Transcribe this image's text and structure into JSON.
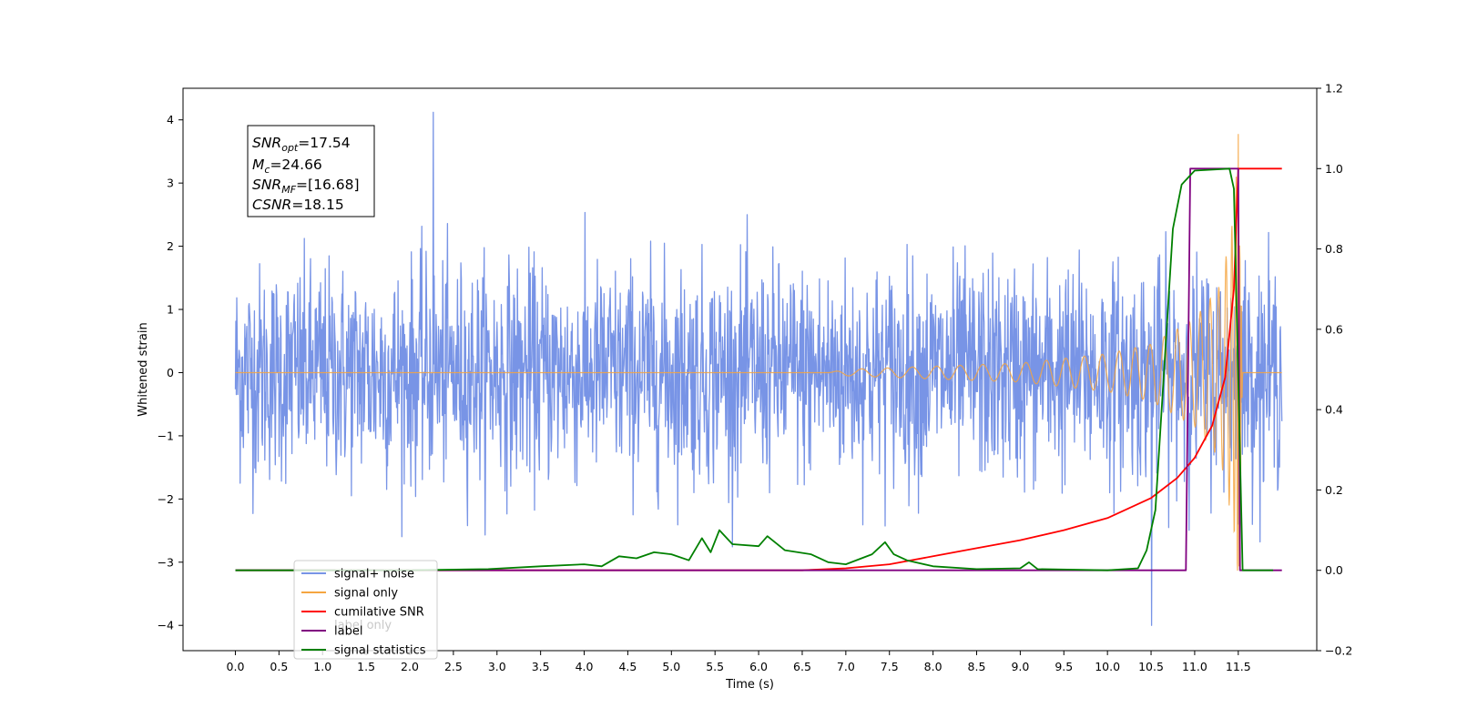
{
  "chart_data": {
    "type": "line",
    "title": "",
    "xlabel": "Time (s)",
    "ylabel": "Whitened strain",
    "xlim": [
      -0.6,
      12.4
    ],
    "ylim": [
      -4.4,
      4.5
    ],
    "y2lim": [
      -0.2,
      1.2
    ],
    "x_ticks": [
      "0.0",
      "0.5",
      "1.0",
      "1.5",
      "2.0",
      "2.5",
      "3.0",
      "3.5",
      "4.0",
      "4.5",
      "5.0",
      "5.5",
      "6.0",
      "6.5",
      "7.0",
      "7.5",
      "8.0",
      "8.5",
      "9.0",
      "9.5",
      "10.0",
      "10.5",
      "11.0",
      "11.5"
    ],
    "y_ticks": [
      "−4",
      "−3",
      "−2",
      "−1",
      "0",
      "1",
      "2",
      "3",
      "4"
    ],
    "y2_ticks": [
      "−0.2",
      "0.0",
      "0.2",
      "0.4",
      "0.6",
      "0.8",
      "1.0",
      "1.2"
    ],
    "annotation": {
      "snr_opt": "=17.54",
      "mc": "=24.66",
      "snr_mf": "=[16.68]",
      "csnr": "=18.15"
    },
    "legend_position": "lower-left",
    "series": [
      {
        "name": "signal+ noise",
        "axis": "left",
        "color": "#7894e6",
        "style": "noise",
        "x_range": [
          0.0,
          12.0
        ],
        "peak_abs_y": [
          4.12,
          -4.0
        ],
        "typical_range": [
          -2.3,
          2.4
        ]
      },
      {
        "name": "signal only",
        "axis": "left",
        "color": "#f5a540",
        "style": "chirp",
        "x_range": [
          0.0,
          12.0
        ],
        "merger_x": 11.5,
        "amplitude_points": [
          [
            6.8,
            0.0
          ],
          [
            7.0,
            0.05
          ],
          [
            8.0,
            0.1
          ],
          [
            9.0,
            0.15
          ],
          [
            10.0,
            0.3
          ],
          [
            10.5,
            0.45
          ],
          [
            11.0,
            0.85
          ],
          [
            11.3,
            1.4
          ],
          [
            11.45,
            2.5
          ],
          [
            11.5,
            3.8
          ],
          [
            11.55,
            0.0
          ]
        ]
      },
      {
        "name": "cumilative SNR",
        "axis": "right",
        "color": "#ff0000",
        "points": [
          [
            0,
            0
          ],
          [
            6.5,
            0
          ],
          [
            7.0,
            0.005
          ],
          [
            7.5,
            0.015
          ],
          [
            8.0,
            0.035
          ],
          [
            8.5,
            0.055
          ],
          [
            9.0,
            0.075
          ],
          [
            9.5,
            0.1
          ],
          [
            10.0,
            0.13
          ],
          [
            10.5,
            0.18
          ],
          [
            10.8,
            0.23
          ],
          [
            11.0,
            0.28
          ],
          [
            11.2,
            0.36
          ],
          [
            11.35,
            0.48
          ],
          [
            11.45,
            0.7
          ],
          [
            11.5,
            1.0
          ],
          [
            12.0,
            1.0
          ]
        ]
      },
      {
        "name": "label",
        "axis": "right",
        "color": "#800080",
        "points": [
          [
            0,
            0
          ],
          [
            10.9,
            0
          ],
          [
            10.95,
            1.0
          ],
          [
            11.5,
            1.0
          ],
          [
            11.52,
            0
          ],
          [
            12.0,
            0
          ]
        ]
      },
      {
        "name": "signal statistics",
        "axis": "right",
        "color": "#008000",
        "points": [
          [
            0,
            0
          ],
          [
            2.0,
            0
          ],
          [
            2.9,
            0.003
          ],
          [
            3.5,
            0.01
          ],
          [
            4.0,
            0.015
          ],
          [
            4.2,
            0.01
          ],
          [
            4.4,
            0.035
          ],
          [
            4.6,
            0.03
          ],
          [
            4.8,
            0.045
          ],
          [
            5.0,
            0.04
          ],
          [
            5.2,
            0.025
          ],
          [
            5.35,
            0.08
          ],
          [
            5.45,
            0.045
          ],
          [
            5.55,
            0.1
          ],
          [
            5.7,
            0.065
          ],
          [
            6.0,
            0.06
          ],
          [
            6.1,
            0.085
          ],
          [
            6.3,
            0.05
          ],
          [
            6.6,
            0.04
          ],
          [
            6.8,
            0.02
          ],
          [
            7.0,
            0.015
          ],
          [
            7.3,
            0.04
          ],
          [
            7.45,
            0.07
          ],
          [
            7.55,
            0.04
          ],
          [
            7.7,
            0.025
          ],
          [
            8.0,
            0.01
          ],
          [
            8.5,
            0.003
          ],
          [
            9.0,
            0.005
          ],
          [
            9.1,
            0.02
          ],
          [
            9.2,
            0.003
          ],
          [
            10.0,
            0.0
          ],
          [
            10.35,
            0.005
          ],
          [
            10.45,
            0.05
          ],
          [
            10.55,
            0.15
          ],
          [
            10.65,
            0.5
          ],
          [
            10.75,
            0.85
          ],
          [
            10.85,
            0.96
          ],
          [
            11.0,
            0.995
          ],
          [
            11.4,
            1.0
          ],
          [
            11.45,
            0.95
          ],
          [
            11.55,
            0.0
          ],
          [
            11.9,
            0.0
          ]
        ]
      }
    ],
    "legend_entries": [
      {
        "label": "signal+ noise",
        "color": "#7894e6"
      },
      {
        "label": "signal only",
        "color": "#f5a540"
      },
      {
        "label": "cumilative SNR",
        "color": "#ff0000"
      },
      {
        "label": "label",
        "color": "#800080"
      },
      {
        "label": "signal statistics",
        "color": "#008000"
      }
    ],
    "hidden_legend_text": "label only"
  }
}
